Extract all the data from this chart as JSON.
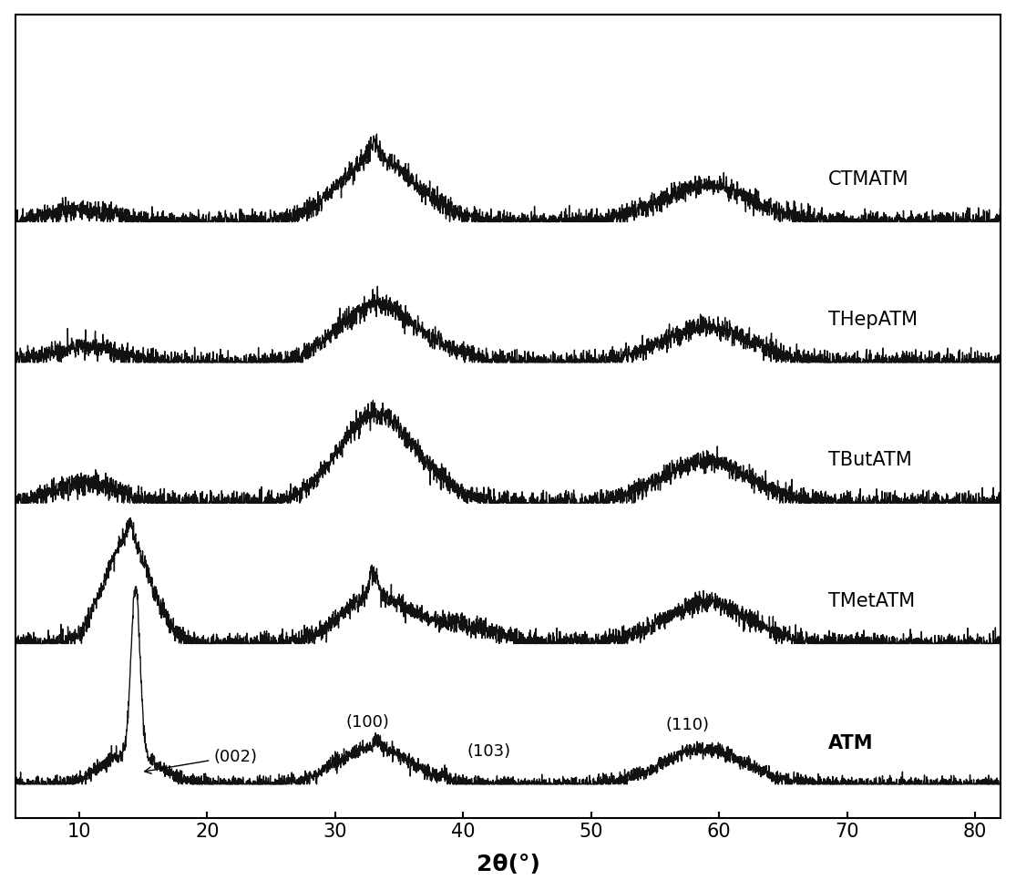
{
  "xlabel": "2θ(°)",
  "xlim": [
    5,
    82
  ],
  "ylim": [
    -0.5,
    11.5
  ],
  "xticks": [
    10,
    20,
    30,
    40,
    50,
    60,
    70,
    80
  ],
  "labels": [
    "ATM",
    "TMetATM",
    "TButATM",
    "THepATM",
    "CTMATM"
  ],
  "offsets": [
    0.0,
    2.1,
    4.2,
    6.3,
    8.4
  ],
  "peak_positions": {
    "002": 14.4,
    "100": 33.0,
    "103": 39.0,
    "110": 59.0
  },
  "background_color": "#ffffff",
  "line_color": "#111111",
  "label_fontsize": 15,
  "xlabel_fontsize": 18,
  "tick_fontsize": 15,
  "annotation_fontsize": 13
}
